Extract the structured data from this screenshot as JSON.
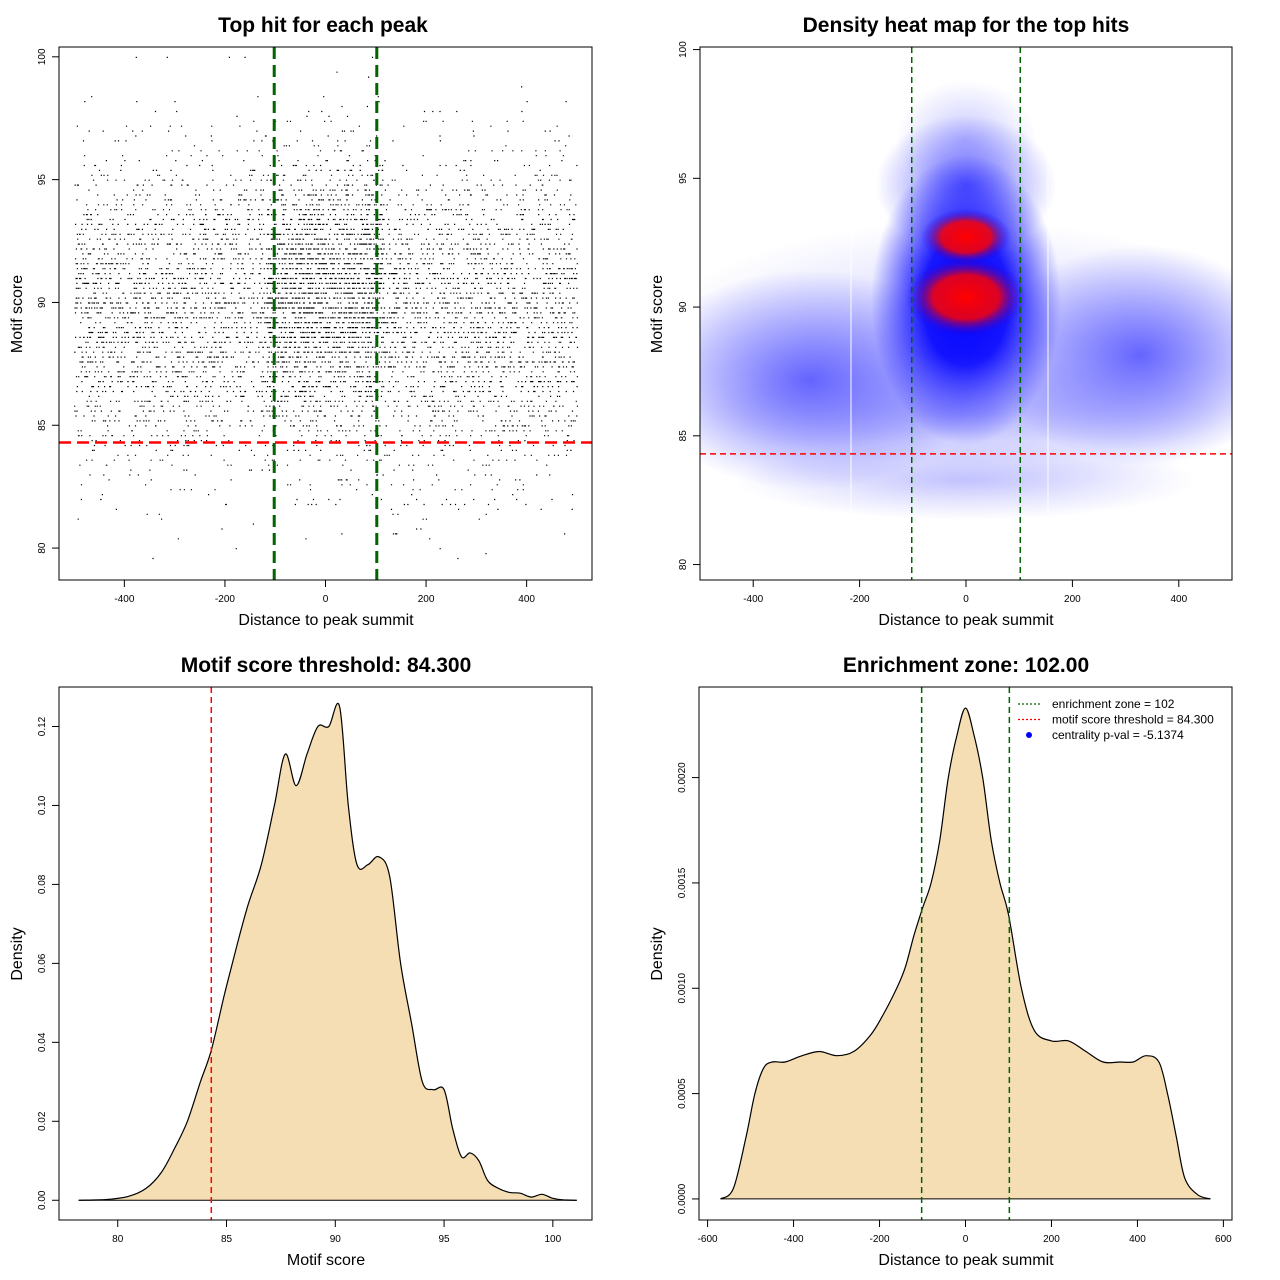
{
  "chart_data": [
    {
      "type": "scatter",
      "title": "Top hit for each peak",
      "xlabel": "Distance to peak summit",
      "ylabel": "Motif score",
      "xlim": [
        -530,
        530
      ],
      "ylim": [
        78.7,
        100.4
      ],
      "xticks": [
        -400,
        -200,
        0,
        200,
        400
      ],
      "xtick_labels": [
        "-400",
        "-200",
        "0",
        "200",
        "400"
      ],
      "yticks": [
        80,
        85,
        90,
        95,
        100
      ],
      "ytick_labels": [
        "80",
        "85",
        "90",
        "95",
        "100"
      ],
      "points": {
        "n": 9000,
        "x_range": [
          -500,
          500
        ],
        "score_distribution_mean": 89.5,
        "score_distribution_sd": 3.2,
        "central_enrichment_halfwidth": 102
      },
      "vlines": [
        -102,
        102
      ],
      "hline": 84.3,
      "colors": {
        "points": "#000000",
        "vlines": "#006400",
        "hline": "#ff0000"
      }
    },
    {
      "type": "heatmap",
      "title": "Density heat map for the top hits",
      "xlabel": "Distance to peak summit",
      "ylabel": "Motif score",
      "xlim": [
        -500,
        500
      ],
      "ylim": [
        79.4,
        100.1
      ],
      "xticks": [
        -400,
        -200,
        0,
        200,
        400
      ],
      "xtick_labels": [
        "-400",
        "-200",
        "0",
        "200",
        "400"
      ],
      "yticks": [
        80,
        85,
        90,
        95,
        100
      ],
      "ytick_labels": [
        "80",
        "85",
        "90",
        "95",
        "100"
      ],
      "density_peaks": [
        {
          "x": 0,
          "y": 90.3,
          "level": "high"
        },
        {
          "x": 0,
          "y": 92.6,
          "level": "high"
        },
        {
          "x": 0,
          "y": 95.0,
          "level": "medium"
        },
        {
          "x": -300,
          "y": 87.5,
          "level": "low"
        },
        {
          "x": 350,
          "y": 88.5,
          "level": "low"
        }
      ],
      "vlines": [
        -102,
        102
      ],
      "hline": 84.3,
      "colors": {
        "low": "#ffffff",
        "mid": "#0000ff",
        "high": "#ff0000",
        "vlines": "#006400",
        "hline": "#ff0000"
      }
    },
    {
      "type": "area",
      "title": "Motif score threshold: 84.300",
      "xlabel": "Motif score",
      "ylabel": "Density",
      "xlim": [
        77.3,
        101.8
      ],
      "ylim": [
        -0.005,
        0.13
      ],
      "xticks": [
        80,
        85,
        90,
        95,
        100
      ],
      "xtick_labels": [
        "80",
        "85",
        "90",
        "95",
        "100"
      ],
      "yticks": [
        0.0,
        0.02,
        0.04,
        0.06,
        0.08,
        0.1,
        0.12
      ],
      "ytick_labels": [
        "0.00",
        "0.02",
        "0.04",
        "0.06",
        "0.08",
        "0.10",
        "0.12"
      ],
      "x": [
        78.2,
        79.5,
        80.5,
        81.3,
        82.0,
        82.6,
        83.2,
        83.8,
        84.3,
        84.9,
        85.5,
        86.0,
        86.6,
        87.2,
        87.7,
        88.2,
        88.7,
        89.2,
        89.7,
        90.2,
        90.6,
        91.0,
        91.5,
        92.0,
        92.5,
        93.0,
        93.5,
        94.0,
        94.5,
        95.0,
        95.4,
        95.8,
        96.2,
        96.6,
        97.0,
        97.5,
        98.0,
        98.5,
        99.0,
        99.5,
        100.0,
        100.5,
        101.1
      ],
      "y": [
        0.0,
        0.0002,
        0.001,
        0.003,
        0.007,
        0.013,
        0.02,
        0.03,
        0.038,
        0.052,
        0.065,
        0.075,
        0.085,
        0.1,
        0.113,
        0.105,
        0.113,
        0.12,
        0.12,
        0.125,
        0.1,
        0.085,
        0.085,
        0.087,
        0.082,
        0.06,
        0.045,
        0.03,
        0.028,
        0.028,
        0.018,
        0.011,
        0.012,
        0.01,
        0.005,
        0.003,
        0.002,
        0.0018,
        0.0008,
        0.0015,
        0.0005,
        0.0001,
        0.0
      ],
      "vline": 84.3,
      "colors": {
        "fill": "#f5deb3",
        "line": "#000000",
        "vline": "#ff0000"
      }
    },
    {
      "type": "area",
      "title": "Enrichment zone: 102.00",
      "xlabel": "Distance to peak summit",
      "ylabel": "Density",
      "xlim": [
        -620,
        620
      ],
      "ylim": [
        -0.0001,
        0.00243
      ],
      "xticks": [
        -600,
        -400,
        -200,
        0,
        200,
        400,
        600
      ],
      "xtick_labels": [
        "-600",
        "-400",
        "-200",
        "0",
        "200",
        "400",
        "600"
      ],
      "yticks": [
        0.0,
        0.0005,
        0.001,
        0.0015,
        0.002
      ],
      "ytick_labels": [
        "0.0000",
        "0.0005",
        "0.0010",
        "0.0015",
        "0.0020"
      ],
      "x": [
        -570,
        -540,
        -510,
        -490,
        -470,
        -450,
        -420,
        -380,
        -340,
        -300,
        -260,
        -220,
        -190,
        -160,
        -140,
        -120,
        -100,
        -80,
        -60,
        -40,
        -20,
        0,
        20,
        40,
        60,
        80,
        100,
        130,
        160,
        200,
        240,
        280,
        320,
        360,
        390,
        420,
        450,
        470,
        490,
        510,
        540,
        570
      ],
      "y": [
        0.0,
        5e-05,
        0.0003,
        0.0005,
        0.00062,
        0.00065,
        0.00065,
        0.00068,
        0.0007,
        0.00068,
        0.0007,
        0.00078,
        0.00088,
        0.001,
        0.0011,
        0.00125,
        0.00138,
        0.0015,
        0.0017,
        0.002,
        0.0022,
        0.00233,
        0.0022,
        0.002,
        0.0017,
        0.0015,
        0.00135,
        0.001,
        0.0008,
        0.00075,
        0.00075,
        0.0007,
        0.00065,
        0.00065,
        0.00065,
        0.00068,
        0.00065,
        0.0005,
        0.0003,
        0.0001,
        2e-05,
        0.0
      ],
      "vlines": [
        -102,
        102
      ],
      "legend": {
        "position": "top-right",
        "entries": [
          {
            "label": "enrichment zone = 102",
            "color": "#006400",
            "style": "dotted"
          },
          {
            "label": "motif score threshold = 84.300",
            "color": "#ff0000",
            "style": "dotted"
          },
          {
            "label": "centrality p-val = -5.1374",
            "color": "#0000ff",
            "style": "point"
          }
        ]
      },
      "colors": {
        "fill": "#f5deb3",
        "line": "#000000",
        "vlines": "#006400"
      }
    }
  ]
}
